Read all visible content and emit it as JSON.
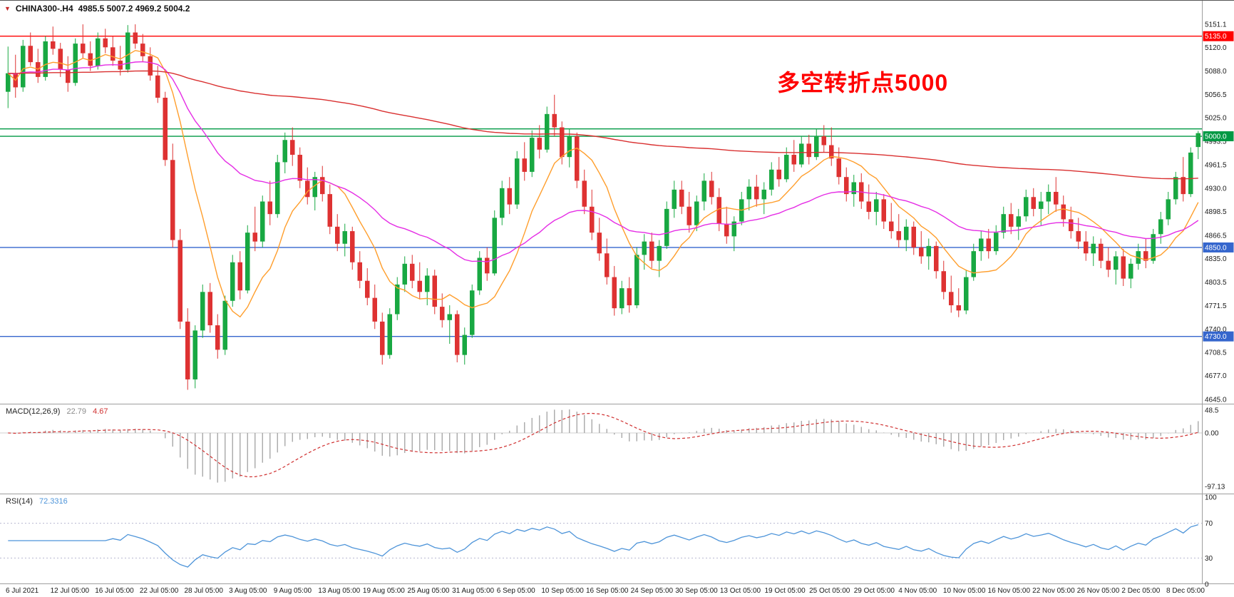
{
  "header": {
    "symbol": "CHINA300-.H4",
    "ohlc": "4985.5 5007.2 4969.2 5004.2"
  },
  "annotation": {
    "text": "多空转折点5000",
    "color": "#FF0000"
  },
  "indicators_header": {
    "macd_name": "MACD(12,26,9)",
    "macd_value_main": "22.79",
    "macd_value_signal": "4.67",
    "rsi_name": "RSI(14)",
    "rsi_value": "72.3316"
  },
  "chart_data": {
    "type": "candlestick",
    "title": "CHINA300-.H4",
    "symbol": "CHINA300-",
    "timeframe": "H4",
    "current_bar": {
      "open": 4985.5,
      "high": 5007.2,
      "low": 4969.2,
      "close": 5004.2
    },
    "ylim": [
      4645.0,
      5151.1
    ],
    "colors": {
      "up": "#18A842",
      "down": "#DE3232",
      "ma_fast": "#FF9E2C",
      "ma_mid": "#E52EE5",
      "ma_slow": "#D93030",
      "level_red": "#FF0000",
      "level_green": "#009944",
      "level_blue": "#3566CD",
      "macd_histogram": "#A8A8A8",
      "macd_signal": "#D03030",
      "rsi_line": "#4D94D9",
      "rsi_levels": "#B8B8D0"
    },
    "y_axis_ticks": [
      "5151.1",
      "5120.0",
      "5088.0",
      "5056.5",
      "5025.0",
      "4993.5",
      "4961.5",
      "4930.0",
      "4898.5",
      "4866.5",
      "4835.0",
      "4803.5",
      "4771.5",
      "4740.0",
      "4708.5",
      "4677.0",
      "4645.0"
    ],
    "levels": [
      {
        "value": 5135.0,
        "label": "5135.0",
        "color": "#FF0000"
      },
      {
        "value": 5010.0,
        "label": "",
        "color": "#009944"
      },
      {
        "value": 5000.0,
        "label": "5000.0",
        "color": "#009944"
      },
      {
        "value": 4850.0,
        "label": "4850.0",
        "color": "#3566CD"
      },
      {
        "value": 4730.0,
        "label": "4730.0",
        "color": "#3566CD"
      }
    ],
    "moving_averages": [
      {
        "kind": "sma",
        "period": 9,
        "color_key": "ma_fast"
      },
      {
        "kind": "ema",
        "period": 35,
        "color_key": "ma_mid"
      },
      {
        "kind": "ema",
        "period": 240,
        "color_key": "ma_slow"
      }
    ],
    "macd": {
      "name": "MACD",
      "params": [
        12,
        26,
        9
      ],
      "value_main": 22.79,
      "value_signal": 4.67,
      "axis_ticks": [
        "48.5",
        "0.00",
        "-97.13"
      ]
    },
    "rsi": {
      "name": "RSI",
      "period": 14,
      "value": 72.3316,
      "levels": [
        70,
        30
      ],
      "axis_ticks": [
        "100",
        "70",
        "30",
        "0"
      ]
    },
    "x_labels": [
      "6 Jul 2021",
      "12 Jul 05:00",
      "16 Jul 05:00",
      "22 Jul 05:00",
      "28 Jul 05:00",
      "3 Aug 05:00",
      "9 Aug 05:00",
      "13 Aug 05:00",
      "19 Aug 05:00",
      "25 Aug 05:00",
      "31 Aug 05:00",
      "6 Sep 05:00",
      "10 Sep 05:00",
      "16 Sep 05:00",
      "24 Sep 05:00",
      "30 Sep 05:00",
      "13 Oct 05:00",
      "19 Oct 05:00",
      "25 Oct 05:00",
      "29 Oct 05:00",
      "4 Nov 05:00",
      "10 Nov 05:00",
      "16 Nov 05:00",
      "22 Nov 05:00",
      "26 Nov 05:00",
      "2 Dec 05:00",
      "8 Dec 05:00"
    ],
    "candles": [
      [
        5060,
        5121,
        5038,
        5085
      ],
      [
        5085,
        5110,
        5052,
        5066
      ],
      [
        5066,
        5130,
        5060,
        5122
      ],
      [
        5122,
        5140,
        5095,
        5100
      ],
      [
        5100,
        5118,
        5072,
        5080
      ],
      [
        5080,
        5135,
        5075,
        5128
      ],
      [
        5128,
        5148,
        5110,
        5118
      ],
      [
        5118,
        5126,
        5080,
        5090
      ],
      [
        5090,
        5108,
        5060,
        5072
      ],
      [
        5072,
        5132,
        5068,
        5125
      ],
      [
        5125,
        5151,
        5105,
        5112
      ],
      [
        5112,
        5128,
        5088,
        5095
      ],
      [
        5095,
        5140,
        5090,
        5132
      ],
      [
        5132,
        5145,
        5112,
        5120
      ],
      [
        5120,
        5135,
        5095,
        5102
      ],
      [
        5102,
        5122,
        5082,
        5090
      ],
      [
        5090,
        5150,
        5086,
        5140
      ],
      [
        5140,
        5151,
        5118,
        5125
      ],
      [
        5125,
        5138,
        5100,
        5108
      ],
      [
        5108,
        5120,
        5075,
        5082
      ],
      [
        5082,
        5095,
        5045,
        5052
      ],
      [
        5052,
        5060,
        4960,
        4968
      ],
      [
        4968,
        4990,
        4850,
        4860
      ],
      [
        4860,
        4875,
        4740,
        4750
      ],
      [
        4750,
        4768,
        4658,
        4672
      ],
      [
        4672,
        4745,
        4660,
        4738
      ],
      [
        4738,
        4800,
        4728,
        4790
      ],
      [
        4790,
        4802,
        4735,
        4745
      ],
      [
        4745,
        4760,
        4700,
        4712
      ],
      [
        4712,
        4785,
        4705,
        4778
      ],
      [
        4778,
        4840,
        4770,
        4830
      ],
      [
        4830,
        4845,
        4780,
        4792
      ],
      [
        4792,
        4880,
        4788,
        4870
      ],
      [
        4870,
        4905,
        4845,
        4858
      ],
      [
        4858,
        4920,
        4850,
        4912
      ],
      [
        4912,
        4940,
        4880,
        4895
      ],
      [
        4895,
        4975,
        4890,
        4965
      ],
      [
        4965,
        5005,
        4950,
        4995
      ],
      [
        4995,
        5012,
        4960,
        4975
      ],
      [
        4975,
        4985,
        4930,
        4940
      ],
      [
        4940,
        4958,
        4908,
        4918
      ],
      [
        4918,
        4952,
        4900,
        4945
      ],
      [
        4945,
        4960,
        4912,
        4922
      ],
      [
        4922,
        4935,
        4868,
        4878
      ],
      [
        4878,
        4895,
        4845,
        4855
      ],
      [
        4855,
        4882,
        4838,
        4872
      ],
      [
        4872,
        4878,
        4820,
        4830
      ],
      [
        4830,
        4845,
        4795,
        4805
      ],
      [
        4805,
        4822,
        4772,
        4782
      ],
      [
        4782,
        4800,
        4740,
        4750
      ],
      [
        4750,
        4762,
        4692,
        4705
      ],
      [
        4705,
        4768,
        4700,
        4760
      ],
      [
        4760,
        4810,
        4752,
        4800
      ],
      [
        4800,
        4838,
        4790,
        4828
      ],
      [
        4828,
        4840,
        4795,
        4805
      ],
      [
        4805,
        4830,
        4780,
        4790
      ],
      [
        4790,
        4822,
        4772,
        4812
      ],
      [
        4812,
        4820,
        4760,
        4770
      ],
      [
        4770,
        4788,
        4742,
        4752
      ],
      [
        4752,
        4772,
        4720,
        4760
      ],
      [
        4760,
        4765,
        4695,
        4705
      ],
      [
        4705,
        4742,
        4692,
        4732
      ],
      [
        4732,
        4800,
        4728,
        4792
      ],
      [
        4792,
        4845,
        4786,
        4836
      ],
      [
        4836,
        4850,
        4805,
        4815
      ],
      [
        4815,
        4900,
        4812,
        4890
      ],
      [
        4890,
        4940,
        4880,
        4930
      ],
      [
        4930,
        4945,
        4895,
        4908
      ],
      [
        4908,
        4980,
        4902,
        4970
      ],
      [
        4970,
        4992,
        4940,
        4952
      ],
      [
        4952,
        5008,
        4945,
        4998
      ],
      [
        4998,
        5015,
        4970,
        4982
      ],
      [
        4982,
        5040,
        4978,
        5030
      ],
      [
        5030,
        5056,
        5000,
        5012
      ],
      [
        5012,
        5020,
        4962,
        4972
      ],
      [
        4972,
        5010,
        4958,
        5000
      ],
      [
        5000,
        5005,
        4930,
        4940
      ],
      [
        4940,
        4955,
        4895,
        4905
      ],
      [
        4905,
        4928,
        4860,
        4870
      ],
      [
        4870,
        4890,
        4832,
        4842
      ],
      [
        4842,
        4862,
        4800,
        4810
      ],
      [
        4810,
        4825,
        4758,
        4768
      ],
      [
        4768,
        4805,
        4760,
        4795
      ],
      [
        4795,
        4810,
        4762,
        4772
      ],
      [
        4772,
        4850,
        4768,
        4840
      ],
      [
        4840,
        4868,
        4820,
        4858
      ],
      [
        4858,
        4870,
        4822,
        4832
      ],
      [
        4832,
        4860,
        4810,
        4852
      ],
      [
        4852,
        4912,
        4848,
        4902
      ],
      [
        4902,
        4940,
        4890,
        4928
      ],
      [
        4928,
        4940,
        4895,
        4905
      ],
      [
        4905,
        4925,
        4870,
        4880
      ],
      [
        4880,
        4920,
        4872,
        4912
      ],
      [
        4912,
        4950,
        4900,
        4940
      ],
      [
        4940,
        4952,
        4908,
        4918
      ],
      [
        4918,
        4930,
        4872,
        4882
      ],
      [
        4882,
        4905,
        4855,
        4865
      ],
      [
        4865,
        4892,
        4845,
        4885
      ],
      [
        4885,
        4925,
        4880,
        4915
      ],
      [
        4915,
        4942,
        4900,
        4932
      ],
      [
        4932,
        4948,
        4905,
        4915
      ],
      [
        4915,
        4938,
        4895,
        4928
      ],
      [
        4928,
        4965,
        4920,
        4955
      ],
      [
        4955,
        4972,
        4932,
        4942
      ],
      [
        4942,
        4985,
        4938,
        4975
      ],
      [
        4975,
        4995,
        4952,
        4962
      ],
      [
        4962,
        5000,
        4958,
        4990
      ],
      [
        4990,
        5002,
        4962,
        4972
      ],
      [
        4972,
        5010,
        4968,
        5000
      ],
      [
        5000,
        5015,
        4978,
        4988
      ],
      [
        4988,
        5012,
        4960,
        4970
      ],
      [
        4970,
        4985,
        4935,
        4945
      ],
      [
        4945,
        4958,
        4912,
        4922
      ],
      [
        4922,
        4948,
        4905,
        4938
      ],
      [
        4938,
        4950,
        4902,
        4912
      ],
      [
        4912,
        4935,
        4888,
        4898
      ],
      [
        4898,
        4925,
        4880,
        4915
      ],
      [
        4915,
        4922,
        4875,
        4885
      ],
      [
        4885,
        4910,
        4862,
        4872
      ],
      [
        4872,
        4895,
        4850,
        4860
      ],
      [
        4860,
        4888,
        4845,
        4878
      ],
      [
        4878,
        4885,
        4840,
        4850
      ],
      [
        4850,
        4872,
        4828,
        4838
      ],
      [
        4838,
        4862,
        4820,
        4852
      ],
      [
        4852,
        4858,
        4808,
        4818
      ],
      [
        4818,
        4832,
        4780,
        4790
      ],
      [
        4790,
        4812,
        4762,
        4772
      ],
      [
        4772,
        4795,
        4756,
        4765
      ],
      [
        4765,
        4820,
        4760,
        4810
      ],
      [
        4810,
        4855,
        4805,
        4845
      ],
      [
        4845,
        4872,
        4832,
        4862
      ],
      [
        4862,
        4875,
        4835,
        4845
      ],
      [
        4845,
        4880,
        4840,
        4870
      ],
      [
        4870,
        4905,
        4862,
        4895
      ],
      [
        4895,
        4910,
        4868,
        4878
      ],
      [
        4878,
        4902,
        4860,
        4892
      ],
      [
        4892,
        4928,
        4885,
        4918
      ],
      [
        4918,
        4930,
        4892,
        4902
      ],
      [
        4902,
        4925,
        4880,
        4912
      ],
      [
        4912,
        4935,
        4895,
        4925
      ],
      [
        4925,
        4945,
        4898,
        4908
      ],
      [
        4908,
        4920,
        4878,
        4888
      ],
      [
        4888,
        4905,
        4862,
        4872
      ],
      [
        4872,
        4890,
        4848,
        4858
      ],
      [
        4858,
        4872,
        4832,
        4842
      ],
      [
        4842,
        4865,
        4825,
        4855
      ],
      [
        4855,
        4862,
        4822,
        4832
      ],
      [
        4832,
        4850,
        4810,
        4820
      ],
      [
        4820,
        4845,
        4800,
        4838
      ],
      [
        4838,
        4848,
        4798,
        4808
      ],
      [
        4808,
        4835,
        4795,
        4828
      ],
      [
        4828,
        4855,
        4820,
        4845
      ],
      [
        4845,
        4862,
        4822,
        4832
      ],
      [
        4832,
        4875,
        4828,
        4868
      ],
      [
        4868,
        4898,
        4855,
        4888
      ],
      [
        4888,
        4925,
        4880,
        4915
      ],
      [
        4915,
        4952,
        4908,
        4945
      ],
      [
        4945,
        4972,
        4912,
        4922
      ],
      [
        4922,
        4985,
        4918,
        4978
      ],
      [
        4985.5,
        5007.2,
        4969.2,
        5004.2
      ]
    ]
  }
}
